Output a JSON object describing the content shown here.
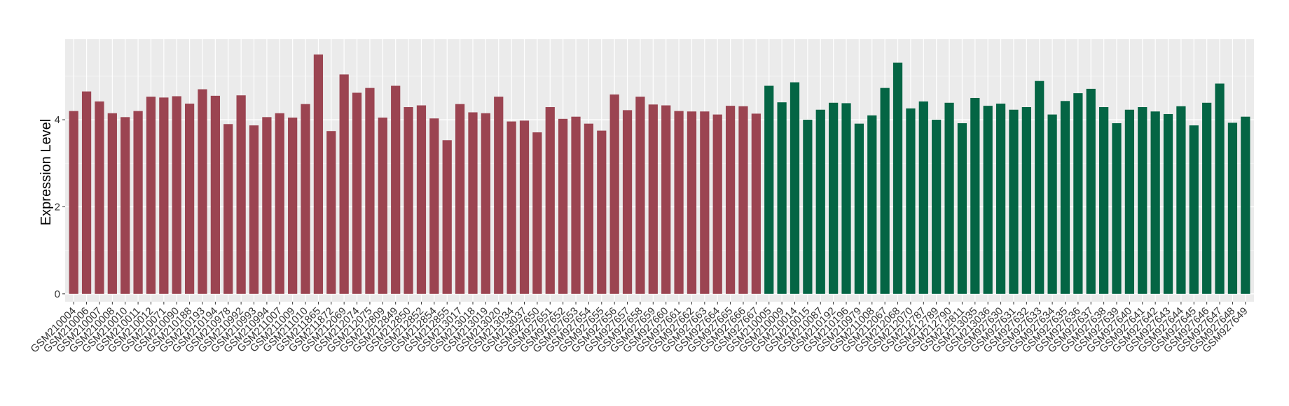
{
  "chart_data": {
    "type": "bar",
    "title": "",
    "xlabel": "",
    "ylabel": "Expression Level",
    "ylim": [
      -0.18,
      5.85
    ],
    "yticks": [
      0,
      2,
      4
    ],
    "grid": true,
    "legend": "none",
    "colors": {
      "group1": "#9B4451",
      "group2": "#046544",
      "panel": "#EBEBEB",
      "grid": "#FFFFFF"
    },
    "categories": [
      "GSM210004",
      "GSM210006",
      "GSM210007",
      "GSM210008",
      "GSM210010",
      "GSM210011",
      "GSM210012",
      "GSM210071",
      "GSM210090",
      "GSM210188",
      "GSM210193",
      "GSM210194",
      "GSM210978",
      "GSM210992",
      "GSM210993",
      "GSM210994",
      "GSM211007",
      "GSM211009",
      "GSM211010",
      "GSM211865",
      "GSM211872",
      "GSM212069",
      "GSM212074",
      "GSM212075",
      "GSM212809",
      "GSM212849",
      "GSM212850",
      "GSM212852",
      "GSM212854",
      "GSM212855",
      "GSM213017",
      "GSM213018",
      "GSM213019",
      "GSM213020",
      "GSM213034",
      "GSM213037",
      "GSM927650",
      "GSM927651",
      "GSM927652",
      "GSM927653",
      "GSM927654",
      "GSM927655",
      "GSM927656",
      "GSM927657",
      "GSM927658",
      "GSM927659",
      "GSM927660",
      "GSM927661",
      "GSM927662",
      "GSM927663",
      "GSM927664",
      "GSM927665",
      "GSM927666",
      "GSM927667",
      "GSM210005",
      "GSM210009",
      "GSM210014",
      "GSM210015",
      "GSM210087",
      "GSM210192",
      "GSM210196",
      "GSM210979",
      "GSM211008",
      "GSM212067",
      "GSM212068",
      "GSM212070",
      "GSM212787",
      "GSM212789",
      "GSM212790",
      "GSM212811",
      "GSM213035",
      "GSM213036",
      "GSM927630",
      "GSM927631",
      "GSM927632",
      "GSM927633",
      "GSM927634",
      "GSM927635",
      "GSM927636",
      "GSM927637",
      "GSM927638",
      "GSM927639",
      "GSM927640",
      "GSM927641",
      "GSM927642",
      "GSM927643",
      "GSM927644",
      "GSM927645",
      "GSM927646",
      "GSM927647",
      "GSM927648",
      "GSM927649"
    ],
    "values": [
      4.2,
      4.65,
      4.42,
      4.15,
      4.06,
      4.2,
      4.53,
      4.51,
      4.54,
      4.37,
      4.7,
      4.55,
      3.9,
      4.56,
      3.87,
      4.06,
      4.15,
      4.05,
      4.36,
      5.5,
      3.74,
      5.04,
      4.62,
      4.73,
      4.05,
      4.78,
      4.29,
      4.33,
      4.03,
      3.53,
      4.36,
      4.17,
      4.15,
      4.53,
      3.96,
      3.98,
      3.71,
      4.29,
      4.02,
      4.07,
      3.91,
      3.75,
      4.58,
      4.22,
      4.53,
      4.35,
      4.33,
      4.2,
      4.19,
      4.19,
      4.12,
      4.32,
      4.31,
      4.14,
      4.78,
      4.4,
      4.86,
      4.0,
      4.23,
      4.39,
      4.38,
      3.91,
      4.1,
      4.73,
      5.31,
      4.26,
      4.42,
      4.0,
      4.39,
      3.92,
      4.5,
      4.32,
      4.37,
      4.23,
      4.29,
      4.89,
      4.12,
      4.43,
      4.61,
      4.71,
      4.29,
      3.92,
      4.23,
      4.29,
      4.19,
      4.13,
      4.31,
      3.87,
      4.39,
      4.83,
      3.93,
      4.07
    ],
    "groups_count": [
      54,
      38
    ]
  }
}
